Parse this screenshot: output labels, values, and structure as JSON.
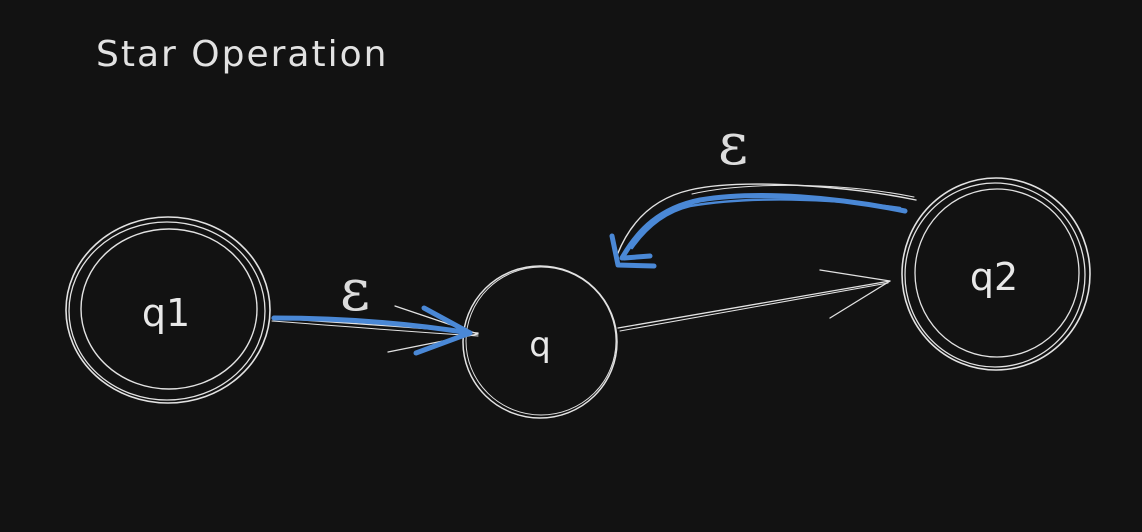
{
  "title": "Star Operation",
  "states": {
    "q1": {
      "label": "q1",
      "accepting": true
    },
    "q": {
      "label": "q",
      "accepting": false
    },
    "q2": {
      "label": "q2",
      "accepting": true
    }
  },
  "transitions": {
    "q1_to_q": {
      "label": "ε",
      "from": "q1",
      "to": "q",
      "highlight": true
    },
    "q_to_q2": {
      "label": "",
      "from": "q",
      "to": "q2",
      "highlight": false
    },
    "q2_to_q": {
      "label": "ε",
      "from": "q2",
      "to": "q",
      "highlight": true
    }
  },
  "colors": {
    "background": "#121212",
    "stroke": "#e2e2e2",
    "highlight": "#4a88d6"
  }
}
